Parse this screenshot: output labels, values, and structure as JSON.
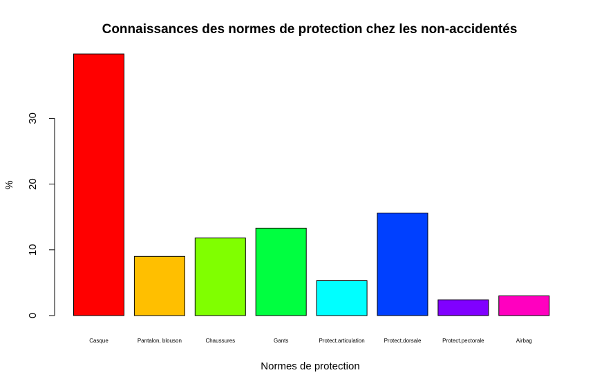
{
  "chart_data": {
    "type": "bar",
    "title": "Connaissances des normes de protection chez les non-accidentés",
    "xlabel": "Normes de protection",
    "ylabel": "%",
    "categories": [
      "Casque",
      "Pantalon, blouson",
      "Chaussures",
      "Gants",
      "Protect.articulation",
      "Protect.dorsale",
      "Protect.pectorale",
      "Airbag"
    ],
    "values": [
      39.8,
      9.0,
      11.8,
      13.3,
      5.3,
      15.6,
      2.4,
      3.0
    ],
    "colors": [
      "#FF0000",
      "#FFBF00",
      "#80FF00",
      "#00FF40",
      "#00FFFF",
      "#0040FF",
      "#8000FF",
      "#FF00BF"
    ],
    "yticks": [
      "0",
      "10",
      "20",
      "30"
    ],
    "ylim": [
      0,
      40
    ],
    "grid": false,
    "legend": "none"
  }
}
